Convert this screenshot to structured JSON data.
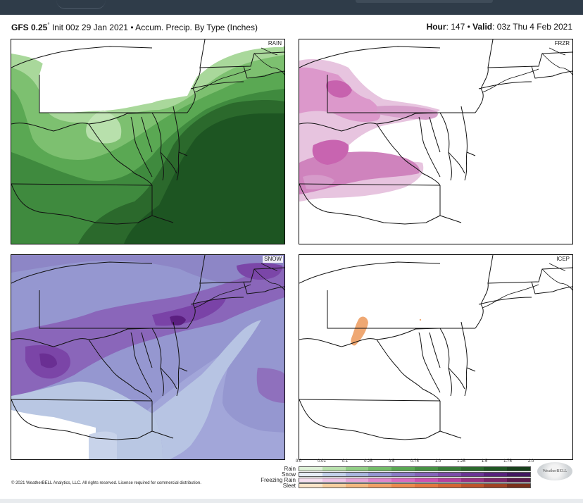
{
  "header": {
    "model": "GFS 0.25",
    "model_deg": "°",
    "init_text": " Init 00z 29 Jan 2021 • Accum. Precip. By Type (Inches)",
    "hour_label": "Hour",
    "hour_value": ": 147 • ",
    "valid_label": "Valid",
    "valid_value": ": 03z Thu 4 Feb 2021"
  },
  "panels": {
    "rain": "RAIN",
    "frzr": "FRZR",
    "snow": "SNOW",
    "icep": "ICEP"
  },
  "legend": {
    "ticks": [
      "0.0",
      "0.01",
      "0.1",
      "0.25",
      "0.5",
      "0.75",
      "1.0",
      "1.25",
      "1.5",
      "1.75",
      "2.0"
    ],
    "rows": [
      {
        "label": "Rain",
        "colors": [
          "#dff2d8",
          "#b9e2ad",
          "#92cf86",
          "#74bd69",
          "#5aa853",
          "#479244",
          "#377c37",
          "#2b692c",
          "#1f5623",
          "#173f1b"
        ]
      },
      {
        "label": "Snow",
        "colors": [
          "#e6ecf6",
          "#c3d1ea",
          "#a9b6df",
          "#9497d2",
          "#8a7cc6",
          "#8564ba",
          "#7c4ca9",
          "#6b3495",
          "#57217c",
          "#421760"
        ]
      },
      {
        "label": "Freezing Rain",
        "colors": [
          "#f6dff0",
          "#f0c4e6",
          "#e7a4d8",
          "#df86cc",
          "#d86bc0",
          "#cc52b1",
          "#b5419d",
          "#983282",
          "#7c2669",
          "#5c1a4d"
        ]
      },
      {
        "label": "Sleet",
        "colors": [
          "#fbe4c8",
          "#f8cf9f",
          "#f4b87f",
          "#f1a066",
          "#ec8a4f",
          "#e47740",
          "#d46534",
          "#bd532a",
          "#a04223",
          "#7a301a"
        ]
      }
    ]
  },
  "copyright": "© 2021 WeatherBELL Analytics, LLC. All rights reserved. License required for commercial distribution.",
  "logo": "WeatherBELL"
}
